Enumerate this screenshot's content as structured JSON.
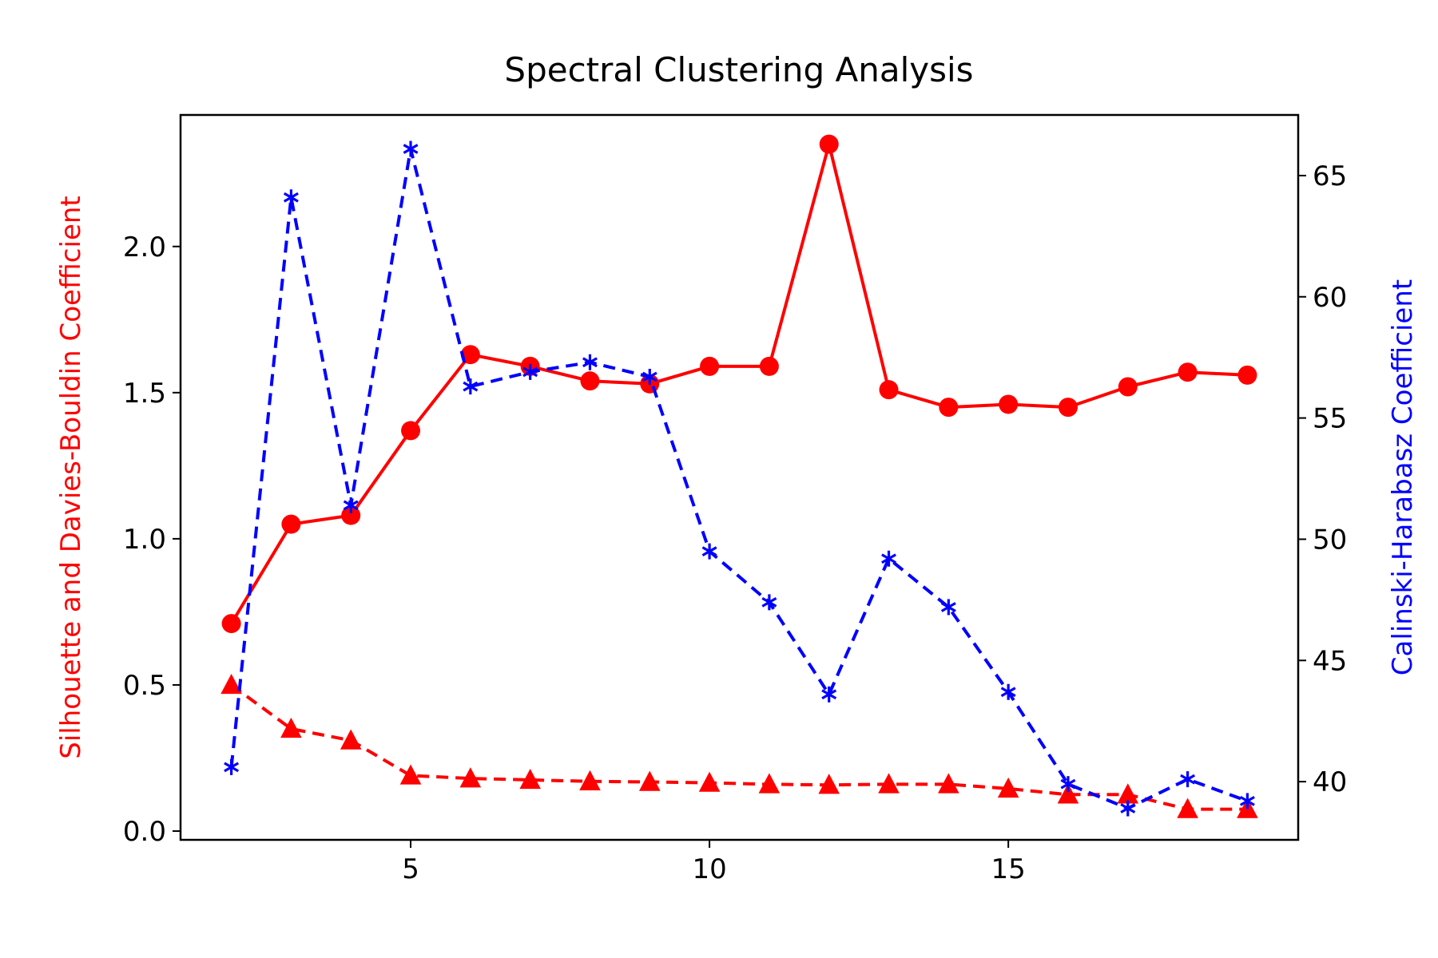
{
  "chart_data": {
    "type": "line",
    "title": "Spectral Clustering Analysis",
    "xlabel": "",
    "ylabel_left": "Silhouette and Davies-Bouldin Coefficient",
    "ylabel_right": "Calinski-Harabasz Coefficient",
    "xlim": [
      1.15,
      19.85
    ],
    "ylim_left": [
      -0.03,
      2.45
    ],
    "ylim_right": [
      37.6,
      67.5
    ],
    "x_ticks": [
      5,
      10,
      15
    ],
    "y_left_ticks": [
      0.0,
      0.5,
      1.0,
      1.5,
      2.0
    ],
    "y_right_ticks": [
      40,
      45,
      50,
      55,
      60,
      65
    ],
    "x": [
      2,
      3,
      4,
      5,
      6,
      7,
      8,
      9,
      10,
      11,
      12,
      13,
      14,
      15,
      16,
      17,
      18,
      19
    ],
    "series": [
      {
        "axis": "left",
        "color": "#ff0000",
        "line_style": "solid",
        "marker": "circle",
        "values": [
          0.71,
          1.05,
          1.08,
          1.37,
          1.63,
          1.59,
          1.54,
          1.53,
          1.59,
          1.59,
          2.35,
          1.51,
          1.45,
          1.46,
          1.45,
          1.52,
          1.57,
          1.56
        ]
      },
      {
        "axis": "left",
        "color": "#ff0000",
        "line_style": "dashed",
        "marker": "triangle",
        "values": [
          0.5,
          0.35,
          0.31,
          0.19,
          0.18,
          0.175,
          0.17,
          0.168,
          0.165,
          0.16,
          0.158,
          0.16,
          0.16,
          0.145,
          0.125,
          0.125,
          0.075,
          0.075
        ]
      },
      {
        "axis": "right",
        "color": "#0000ff",
        "line_style": "dashed",
        "marker": "asterisk",
        "values": [
          40.6,
          64.1,
          51.4,
          66.1,
          56.3,
          56.9,
          57.3,
          56.7,
          49.5,
          47.4,
          43.6,
          49.2,
          47.2,
          43.7,
          39.9,
          38.9,
          40.1,
          39.2
        ]
      }
    ]
  }
}
